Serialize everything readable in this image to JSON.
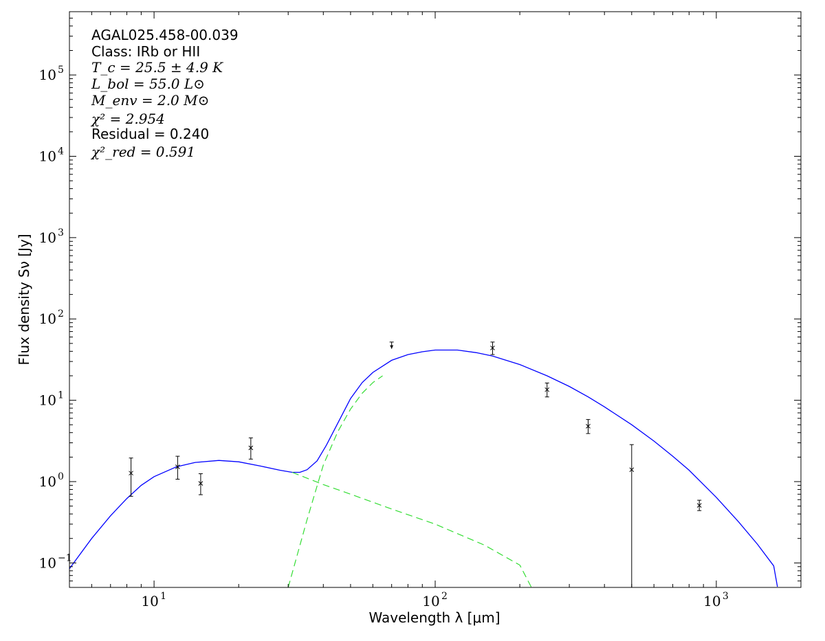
{
  "chart_data": {
    "type": "scatter",
    "title": "",
    "xlabel": "Wavelength λ [μm]",
    "ylabel": "Flux density Sν [Jy]",
    "xscale": "log",
    "yscale": "log",
    "xlim": [
      5,
      2000
    ],
    "ylim": [
      0.05,
      600000
    ],
    "grid": false,
    "x_ticks": [
      {
        "value": 10,
        "base": "10",
        "exp": "1"
      },
      {
        "value": 100,
        "base": "10",
        "exp": "2"
      },
      {
        "value": 1000,
        "base": "10",
        "exp": "3"
      }
    ],
    "y_ticks": [
      {
        "value": 0.1,
        "base": "10",
        "exp": "−1"
      },
      {
        "value": 1,
        "base": "10",
        "exp": "0"
      },
      {
        "value": 10,
        "base": "10",
        "exp": "1"
      },
      {
        "value": 100,
        "base": "10",
        "exp": "2"
      },
      {
        "value": 1000,
        "base": "10",
        "exp": "3"
      },
      {
        "value": 10000,
        "base": "10",
        "exp": "4"
      },
      {
        "value": 100000,
        "base": "10",
        "exp": "5"
      }
    ],
    "annotations": [
      {
        "id": "source",
        "text": "AGAL025.458-00.039"
      },
      {
        "id": "class",
        "text": "Class: IRb or HII"
      },
      {
        "id": "tc",
        "text": "T_c = 25.5 ± 4.9 K"
      },
      {
        "id": "lbol",
        "text": "L_bol = 55.0 L⊙"
      },
      {
        "id": "menv",
        "text": "M_env = 2.0 M⊙"
      },
      {
        "id": "chi2",
        "text": "χ² = 2.954"
      },
      {
        "id": "residual",
        "text": "Residual = 0.240"
      },
      {
        "id": "chi2red",
        "text": "χ²_red = 0.591"
      }
    ],
    "points": [
      {
        "x": 8.28,
        "y": 1.27,
        "ylo": 0.66,
        "yhi": 1.95
      },
      {
        "x": 12.13,
        "y": 1.52,
        "ylo": 1.07,
        "yhi": 2.05
      },
      {
        "x": 14.65,
        "y": 0.95,
        "ylo": 0.69,
        "yhi": 1.25
      },
      {
        "x": 22.09,
        "y": 2.6,
        "ylo": 1.89,
        "yhi": 3.45
      },
      {
        "x": 160,
        "y": 44,
        "ylo": 36.5,
        "yhi": 52
      },
      {
        "x": 250,
        "y": 13.5,
        "ylo": 11,
        "yhi": 16.3
      },
      {
        "x": 350,
        "y": 4.8,
        "ylo": 3.9,
        "yhi": 5.8
      },
      {
        "x": 500,
        "y": 1.4,
        "ylo": 0.03,
        "yhi": 2.85
      },
      {
        "x": 870,
        "y": 0.51,
        "ylo": 0.44,
        "yhi": 0.59
      }
    ],
    "upper_limits": [
      {
        "x": 70,
        "y": 52,
        "arrow_to": 43
      }
    ],
    "series": [
      {
        "style": "solid",
        "color": "#0000ff",
        "x": [
          5,
          6,
          7,
          8,
          9,
          10,
          12,
          14,
          17,
          20,
          24,
          28,
          31,
          33,
          35,
          38,
          41,
          45,
          50,
          55,
          60,
          70,
          80,
          90,
          100,
          120,
          140,
          160,
          200,
          250,
          300,
          350,
          400,
          500,
          600,
          700,
          800,
          1000,
          1200,
          1400,
          1600,
          1650
        ],
        "y": [
          0.085,
          0.2,
          0.38,
          0.62,
          0.9,
          1.15,
          1.52,
          1.72,
          1.82,
          1.75,
          1.55,
          1.38,
          1.3,
          1.3,
          1.4,
          1.8,
          2.8,
          5.2,
          10.5,
          16.5,
          22,
          31,
          36.5,
          39.5,
          41.5,
          41.5,
          38.5,
          35,
          27.5,
          20,
          14.8,
          11,
          8.3,
          5,
          3.15,
          2.05,
          1.38,
          0.64,
          0.32,
          0.17,
          0.092,
          0.051
        ]
      },
      {
        "style": "dashed",
        "color": "#33dd33",
        "x": [
          31,
          40,
          50,
          70,
          100,
          150,
          200,
          220
        ],
        "y": [
          1.3,
          0.92,
          0.7,
          0.46,
          0.3,
          0.165,
          0.094,
          0.05
        ]
      },
      {
        "style": "dashed",
        "color": "#33dd33",
        "x": [
          30,
          35,
          40,
          45,
          50,
          55,
          60,
          65
        ],
        "y": [
          0.05,
          0.34,
          1.6,
          4.1,
          7.8,
          12.2,
          16.5,
          20
        ]
      }
    ]
  }
}
